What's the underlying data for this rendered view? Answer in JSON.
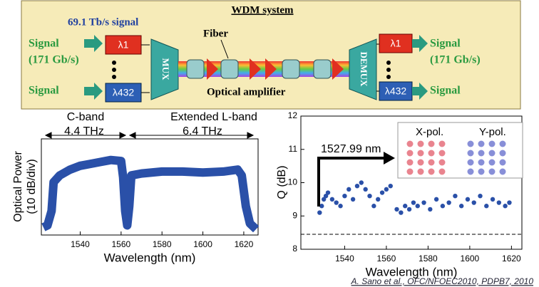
{
  "diagram": {
    "title": "WDM  system",
    "rate": "69.1 Tb/s signal",
    "left_signal_top": "Signal",
    "left_signal_rate": "(171 Gb/s)",
    "left_signal_bottom": "Signal",
    "lambda_top_in": "λ1",
    "lambda_bottom_in": "λ432",
    "mux": "MUX",
    "fiber": "Fiber",
    "amplifier": "Optical amplifier",
    "demux": "DEMUX",
    "lambda_top_out": "λ1",
    "lambda_bottom_out": "λ432",
    "right_signal_top": "Signal",
    "right_signal_rate": "(171 Gb/s)",
    "right_signal_bottom": "Signal"
  },
  "chart_data": [
    {
      "type": "line",
      "ylabel": [
        "Optical Power",
        "(10 dB/div)"
      ],
      "xlabel": "Wavelength (nm)",
      "band1": "C-band",
      "band1_width": "4.4 THz",
      "band2": "Extended L-band",
      "band2_width": "6.4 THz",
      "color": "#2a50a8",
      "x": [
        1522,
        1524,
        1526,
        1527,
        1530,
        1535,
        1540,
        1545,
        1550,
        1555,
        1560,
        1561,
        1562,
        1563,
        1564,
        1565,
        1570,
        1580,
        1590,
        1600,
        1610,
        1617,
        1619,
        1621,
        1623,
        1626
      ],
      "values": [
        8,
        10,
        25,
        55,
        62,
        68,
        72,
        74,
        76,
        78,
        77,
        60,
        25,
        10,
        30,
        62,
        64,
        66,
        66,
        65,
        66,
        68,
        62,
        30,
        12,
        6
      ],
      "xlim": [
        1521,
        1627
      ],
      "ylim": [
        0,
        100
      ],
      "xticks": [
        1540,
        1560,
        1580,
        1600,
        1620
      ]
    },
    {
      "type": "scatter",
      "ylabel": "Q (dB)",
      "xlabel": "Wavelength (nm)",
      "annotation": "1527.99 nm",
      "inset_x": "X-pol.",
      "inset_y": "Y-pol.",
      "color": "#2a50a8",
      "hline": 8.45,
      "x": [
        1528,
        1529,
        1530,
        1531,
        1532,
        1534,
        1536,
        1538,
        1540,
        1542,
        1544,
        1546,
        1548,
        1550,
        1552,
        1554,
        1556,
        1558,
        1560,
        1562,
        1565,
        1567,
        1569,
        1571,
        1573,
        1575,
        1578,
        1581,
        1584,
        1587,
        1590,
        1593,
        1596,
        1599,
        1602,
        1605,
        1608,
        1611,
        1614,
        1617,
        1619
      ],
      "values": [
        9.1,
        9.3,
        9.5,
        9.6,
        9.7,
        9.5,
        9.4,
        9.3,
        9.6,
        9.8,
        9.5,
        9.9,
        10.0,
        9.8,
        9.6,
        9.3,
        9.5,
        9.7,
        9.8,
        9.9,
        9.2,
        9.1,
        9.3,
        9.2,
        9.4,
        9.3,
        9.4,
        9.2,
        9.5,
        9.3,
        9.4,
        9.6,
        9.3,
        9.5,
        9.4,
        9.6,
        9.3,
        9.5,
        9.4,
        9.3,
        9.4
      ],
      "xlim": [
        1519,
        1625
      ],
      "ylim": [
        8,
        12
      ],
      "xticks": [
        1540,
        1560,
        1580,
        1600,
        1620
      ],
      "yticks": [
        8,
        9,
        10,
        11,
        12
      ]
    }
  ],
  "citation": "A. Sano et al., OFC/NFOEC2010, PDPB7, 2010"
}
